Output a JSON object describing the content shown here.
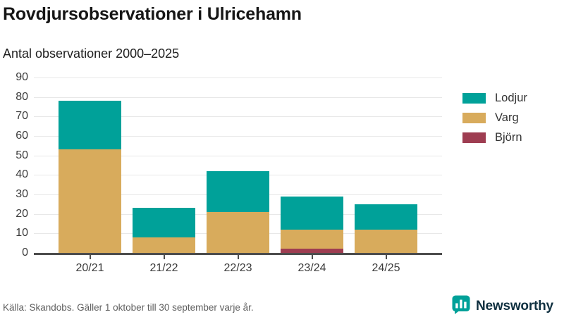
{
  "header": {
    "title": "Rovdjursobservationer i Ulricehamn",
    "subtitle": "Antal observationer 2000–2025"
  },
  "chart_data": {
    "type": "bar",
    "stacked": true,
    "title": "Rovdjursobservationer i Ulricehamn",
    "subtitle": "Antal observationer 2000–2025",
    "categories": [
      "20/21",
      "21/22",
      "22/23",
      "23/24",
      "24/25"
    ],
    "series": [
      {
        "name": "Lodjur",
        "color": "#00a199",
        "values": [
          25,
          15,
          21,
          17,
          13
        ]
      },
      {
        "name": "Varg",
        "color": "#d8ab5c",
        "values": [
          53,
          8,
          21,
          10,
          12
        ]
      },
      {
        "name": "Björn",
        "color": "#9e3d51",
        "values": [
          0,
          0,
          0,
          2,
          0
        ]
      }
    ],
    "totals": [
      78,
      23,
      42,
      29,
      25
    ],
    "stack_order_bottom_to_top": [
      "Björn",
      "Varg",
      "Lodjur"
    ],
    "xlabel": "",
    "ylabel": "",
    "ylim": [
      0,
      90
    ],
    "yticks": [
      0,
      10,
      20,
      30,
      40,
      50,
      60,
      70,
      80,
      90
    ],
    "grid": true,
    "legend_position": "right"
  },
  "legend": {
    "items": [
      {
        "label": "Lodjur",
        "color": "#00a199"
      },
      {
        "label": "Varg",
        "color": "#d8ab5c"
      },
      {
        "label": "Björn",
        "color": "#9e3d51"
      }
    ]
  },
  "footer": {
    "source": "Källa: Skandobs. Gäller 1 oktober till 30 september varje år.",
    "brand": "Newsworthy"
  },
  "colors": {
    "lodjur": "#00a199",
    "varg": "#d8ab5c",
    "bjorn": "#9e3d51",
    "gridline": "#e8e8e8",
    "axis": "#4d4d4d",
    "brand_teal": "#00a199"
  }
}
